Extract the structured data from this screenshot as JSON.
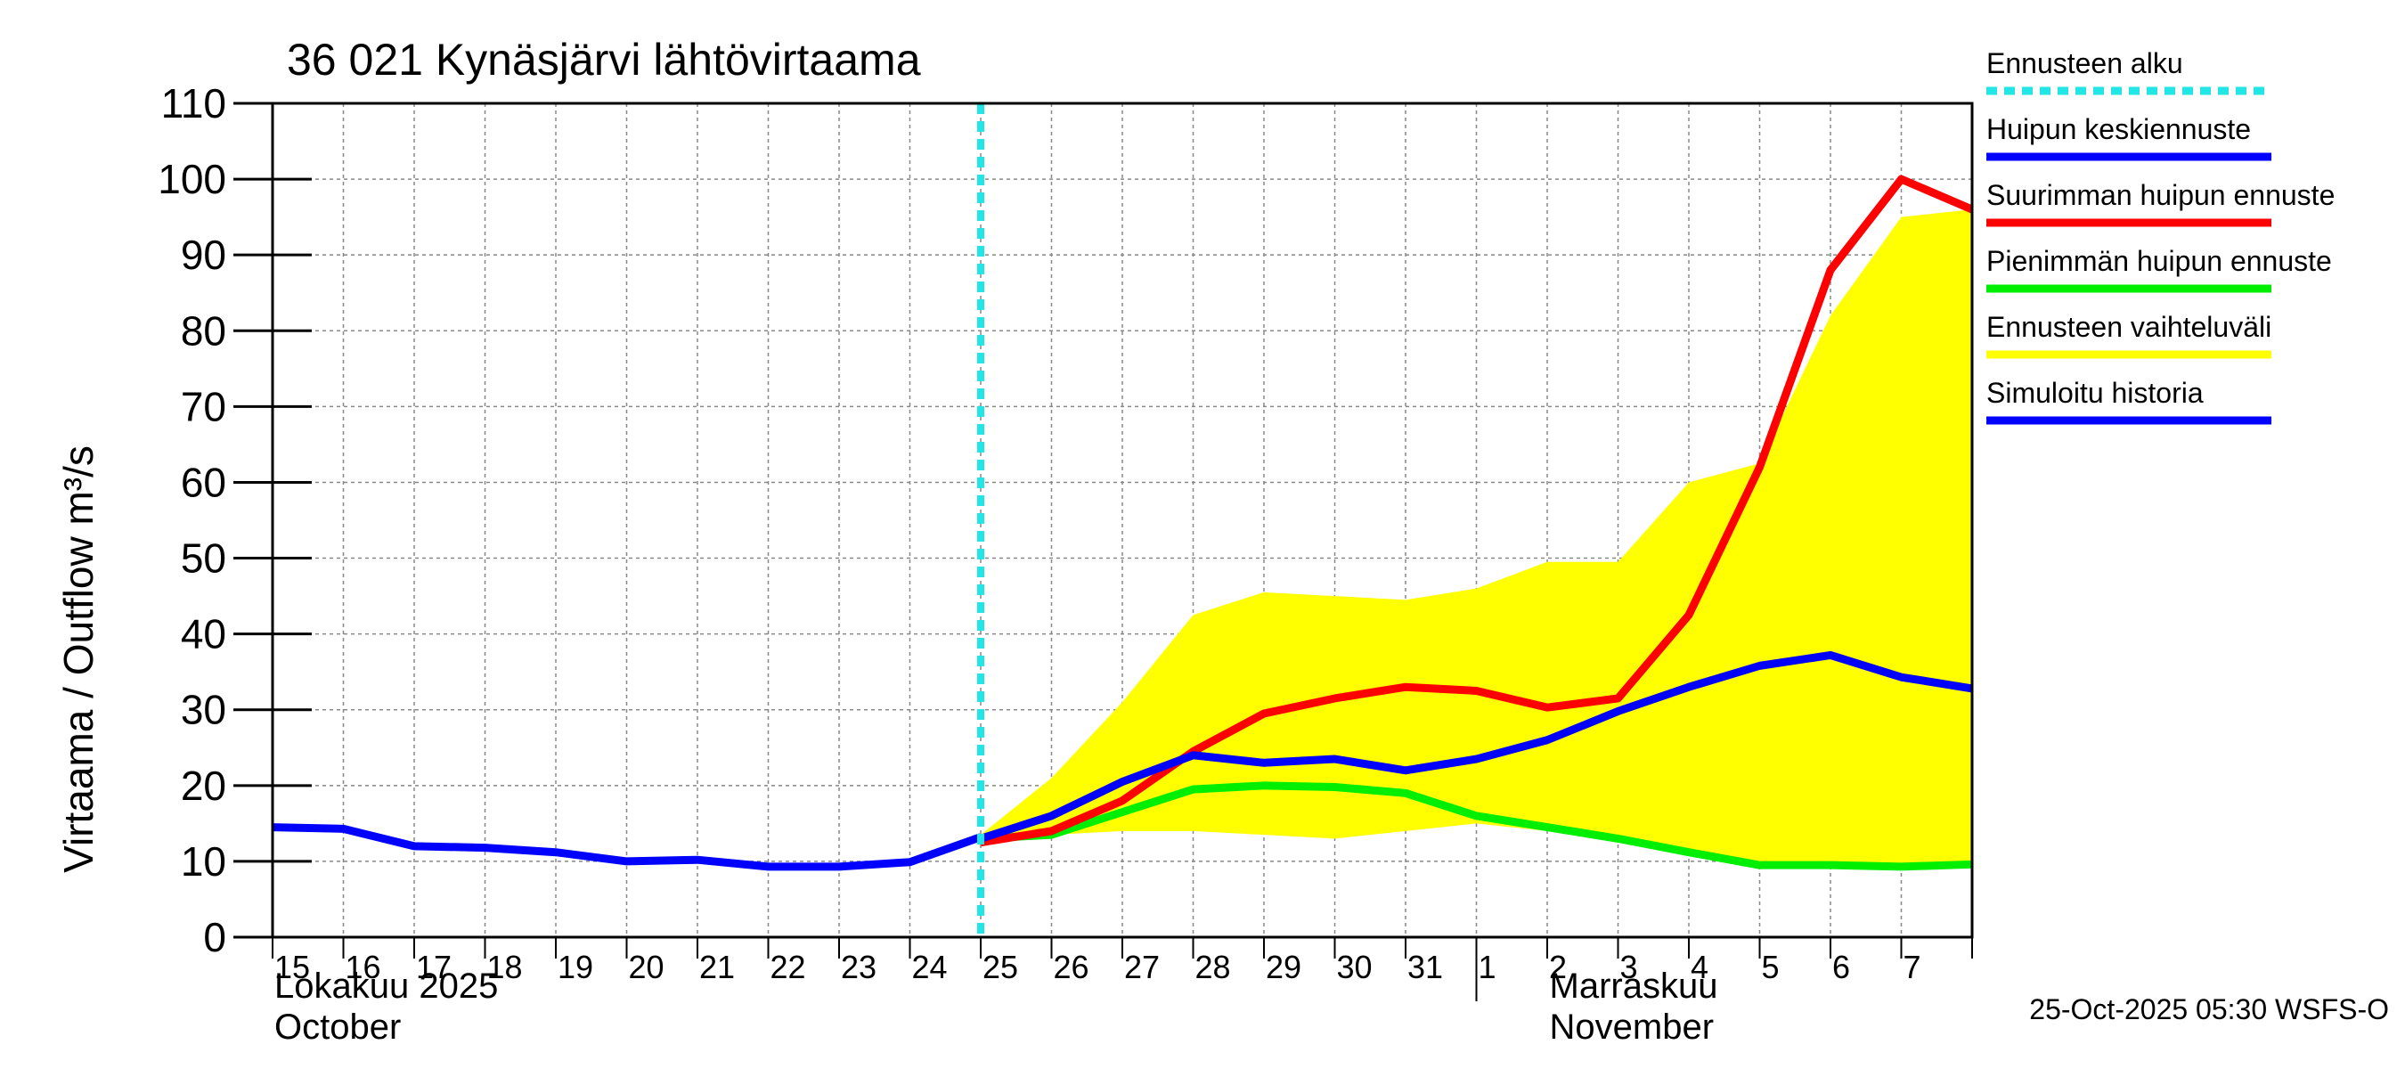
{
  "chart_data": {
    "type": "line",
    "title": "36 021 Kynäsjärvi lähtövirtaama",
    "ylabel": "Virtaama / Outflow    m³/s",
    "ylim": [
      0,
      110
    ],
    "yticks": [
      0,
      10,
      20,
      30,
      40,
      50,
      60,
      70,
      80,
      90,
      100,
      110
    ],
    "x_day_range": [
      0,
      24
    ],
    "x_tick_labels": [
      "15",
      "16",
      "17",
      "18",
      "19",
      "20",
      "21",
      "22",
      "23",
      "24",
      "25",
      "26",
      "27",
      "28",
      "29",
      "30",
      "31",
      "1",
      "2",
      "3",
      "4",
      "5",
      "6",
      "7"
    ],
    "month_labels": [
      {
        "fi": "Lokakuu  2025",
        "en": "October",
        "day_index": 0
      },
      {
        "fi": "Marraskuu",
        "en": "November",
        "day_index": 17
      }
    ],
    "forecast_start_day": 10,
    "series": [
      {
        "name": "Ennusteen vaihteluväli",
        "type": "band",
        "color": "#ffff00",
        "x": [
          10,
          11,
          12,
          13,
          14,
          15,
          16,
          17,
          18,
          19,
          20,
          21,
          22,
          23,
          24
        ],
        "upper": [
          13.5,
          21,
          31,
          42.5,
          45.5,
          45,
          44.5,
          46,
          49.5,
          49.5,
          60,
          62.5,
          82,
          95,
          96
        ],
        "lower": [
          13,
          13.5,
          14,
          14,
          13.5,
          13,
          14,
          15,
          14,
          13,
          11,
          9.5,
          9.5,
          9.5,
          9.5
        ]
      },
      {
        "name": "Pienimmän huipun ennuste",
        "color": "#00ee00",
        "x": [
          10,
          11,
          12,
          13,
          14,
          15,
          16,
          17,
          18,
          19,
          20,
          21,
          22,
          23,
          24
        ],
        "values": [
          13,
          13.5,
          16.5,
          19.5,
          20,
          19.8,
          19,
          16,
          14.5,
          13,
          11.2,
          9.5,
          9.5,
          9.3,
          9.6
        ]
      },
      {
        "name": "Suurimman huipun ennuste",
        "color": "#ff0000",
        "x": [
          10,
          11,
          12,
          13,
          14,
          15,
          16,
          17,
          18,
          19,
          20,
          21,
          22,
          23,
          24
        ],
        "values": [
          12.5,
          14,
          18,
          24.5,
          29.5,
          31.5,
          33,
          32.5,
          30.3,
          31.5,
          42.5,
          62,
          88,
          100,
          96
        ]
      },
      {
        "name": "Huipun keskiennuste",
        "color": "#0000ff",
        "x": [
          10,
          11,
          12,
          13,
          14,
          15,
          16,
          17,
          18,
          19,
          20,
          21,
          22,
          23,
          24
        ],
        "values": [
          13,
          16,
          20.5,
          24,
          23,
          23.5,
          22,
          23.5,
          26,
          29.8,
          33,
          35.8,
          37.2,
          34.3,
          32.8
        ]
      },
      {
        "name": "Simuloitu historia",
        "color": "#0000ff",
        "x": [
          0,
          1,
          2,
          3,
          4,
          5,
          6,
          7,
          8,
          9,
          10
        ],
        "values": [
          14.5,
          14.3,
          12,
          11.8,
          11.2,
          10,
          10.2,
          9.3,
          9.3,
          9.9,
          13.2
        ]
      }
    ],
    "legend": [
      {
        "label": "Ennusteen alku",
        "color": "#22e5e5",
        "dashed": true
      },
      {
        "label": "Huipun keskiennuste",
        "color": "#0000ff"
      },
      {
        "label": "Suurimman huipun ennuste",
        "color": "#ff0000"
      },
      {
        "label": "Pienimmän huipun ennuste",
        "color": "#00ee00"
      },
      {
        "label": "Ennusteen vaihteluväli",
        "color": "#ffff00"
      },
      {
        "label": "Simuloitu historia",
        "color": "#0000ff"
      }
    ],
    "footer": "25-Oct-2025 05:30 WSFS-O"
  }
}
